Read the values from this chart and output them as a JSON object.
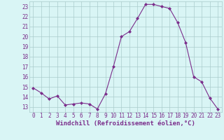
{
  "x": [
    0,
    1,
    2,
    3,
    4,
    5,
    6,
    7,
    8,
    9,
    10,
    11,
    12,
    13,
    14,
    15,
    16,
    17,
    18,
    19,
    20,
    21,
    22,
    23
  ],
  "y": [
    14.9,
    14.4,
    13.8,
    14.1,
    13.2,
    13.3,
    13.4,
    13.3,
    12.8,
    14.3,
    17.0,
    20.0,
    20.5,
    21.8,
    23.2,
    23.2,
    23.0,
    22.8,
    21.4,
    19.4,
    16.0,
    15.5,
    13.9,
    12.8
  ],
  "line_color": "#7b2d8b",
  "marker": "D",
  "marker_size": 2.0,
  "bg_color": "#d9f5f5",
  "grid_color": "#aacccc",
  "xlabel": "Windchill (Refroidissement éolien,°C)",
  "xlabel_color": "#7b2d8b",
  "ylim": [
    12.5,
    23.5
  ],
  "yticks": [
    13,
    14,
    15,
    16,
    17,
    18,
    19,
    20,
    21,
    22,
    23
  ],
  "xticks": [
    0,
    1,
    2,
    3,
    4,
    5,
    6,
    7,
    8,
    9,
    10,
    11,
    12,
    13,
    14,
    15,
    16,
    17,
    18,
    19,
    20,
    21,
    22,
    23
  ],
  "tick_fontsize": 5.5,
  "xlabel_fontsize": 6.5,
  "line_width": 0.8
}
